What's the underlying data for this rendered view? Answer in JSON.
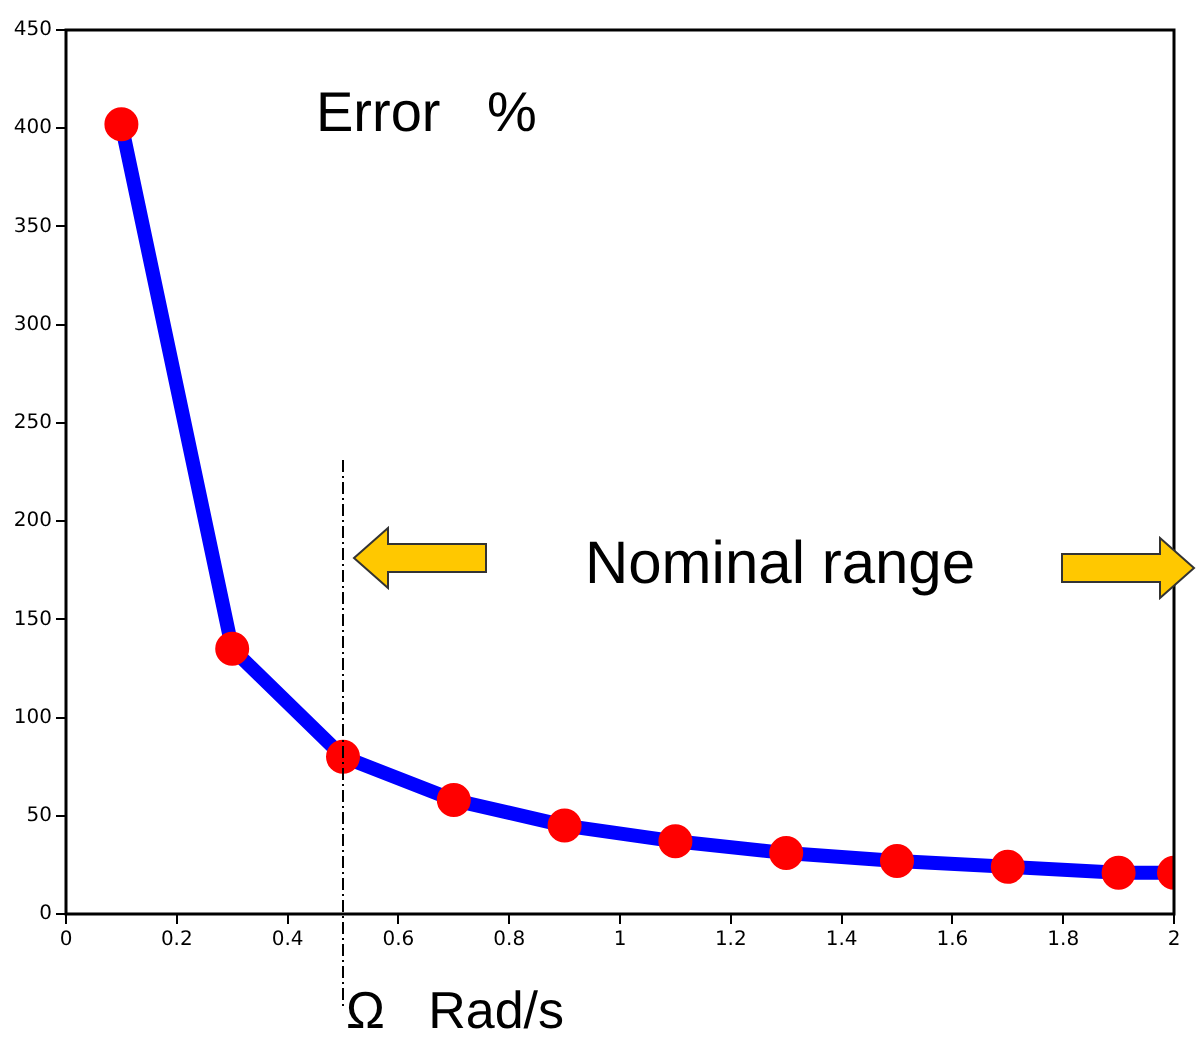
{
  "chart_data": {
    "type": "line",
    "ylabel": "Error   %",
    "xlabel": "Ω   Rad/s",
    "x": [
      0.1,
      0.3,
      0.5,
      0.7,
      0.9,
      1.1,
      1.3,
      1.5,
      1.7,
      1.9,
      2.0
    ],
    "series": [
      {
        "color": "#0000ff",
        "colors": [
          "#ff0000",
          "#ff0000",
          "#ff0000",
          "#ff0000",
          "#ff0000",
          "#ff0000",
          "#ff0000",
          "#ff0000",
          "#ff0000",
          "#ff0000",
          "#ff0000"
        ],
        "values": [
          402,
          135,
          80,
          58,
          45,
          37,
          31,
          27,
          24,
          21,
          21
        ]
      }
    ],
    "xlim": [
      0,
      2
    ],
    "xticks": [
      0,
      0.2,
      0.4,
      0.6,
      0.8,
      1,
      1.2,
      1.4,
      1.6,
      1.8,
      2
    ],
    "ylim": [
      0,
      450
    ],
    "yticks": [
      0,
      50,
      100,
      150,
      200,
      250,
      300,
      350,
      400,
      450
    ],
    "grid": false,
    "legend": false,
    "marker": "circle",
    "line_style": "solid",
    "ref_lines": [
      {
        "axis": "x",
        "value": 0.5,
        "line_style": "dashed",
        "color": "#000000"
      }
    ],
    "annotations": [
      "Nominal range"
    ]
  }
}
